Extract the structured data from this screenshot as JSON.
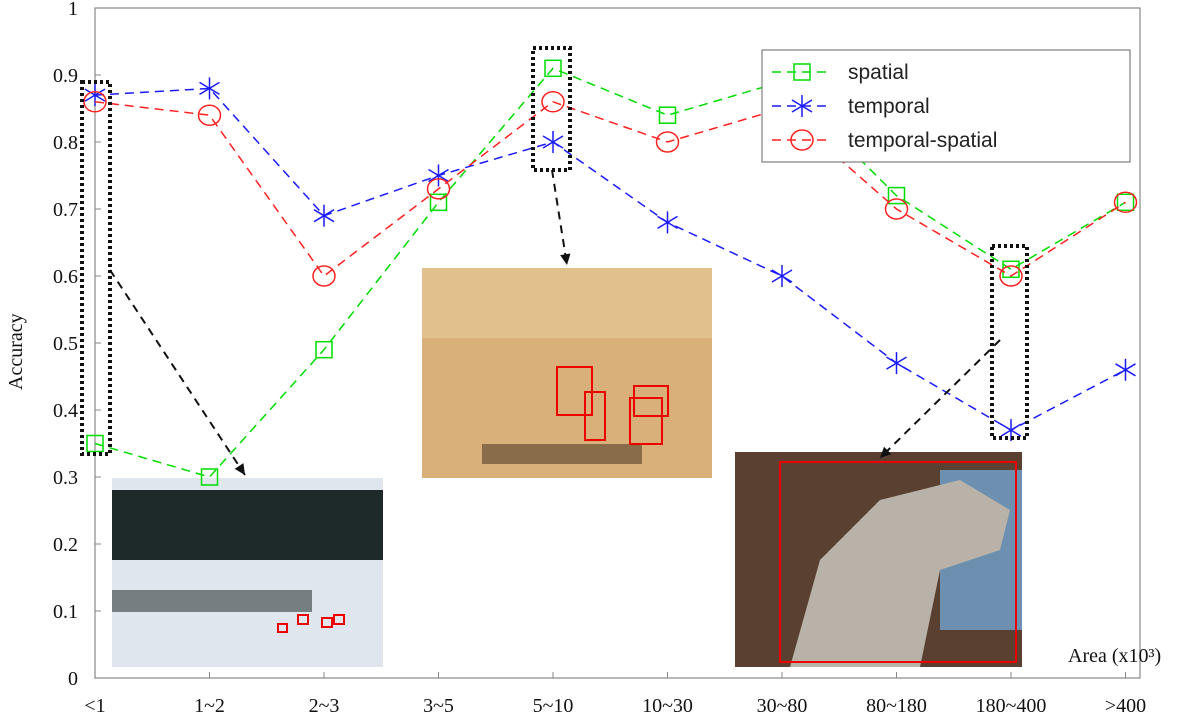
{
  "chart_data": {
    "type": "line",
    "xlabel": "Area (x10³)",
    "ylabel": "Accuracy",
    "categories": [
      "<1",
      "1~2",
      "2~3",
      "3~5",
      "5~10",
      "10~30",
      "30~80",
      "80~180",
      "180~400",
      ">400"
    ],
    "ylim": [
      0,
      1
    ],
    "yticks": [
      "0",
      "0.1",
      "0.2",
      "0.3",
      "0.4",
      "0.5",
      "0.6",
      "0.7",
      "0.8",
      "0.9",
      "1"
    ],
    "grid": false,
    "legend": "top-right",
    "series": [
      {
        "name": "spatial",
        "color": "#00dd00",
        "marker": "square",
        "values": [
          0.35,
          0.3,
          0.49,
          0.71,
          0.91,
          0.84,
          0.89,
          0.72,
          0.61,
          0.71
        ]
      },
      {
        "name": "temporal",
        "color": "#1a1aff",
        "marker": "asterisk",
        "values": [
          0.87,
          0.88,
          0.69,
          0.75,
          0.8,
          0.68,
          0.6,
          0.47,
          0.37,
          0.46
        ]
      },
      {
        "name": "temporal-spatial",
        "color": "#ff2020",
        "marker": "circle",
        "values": [
          0.86,
          0.84,
          0.6,
          0.73,
          0.86,
          0.8,
          0.85,
          0.7,
          0.6,
          0.71
        ]
      }
    ],
    "annotations": [
      "<1",
      "5~10",
      "180~400"
    ]
  }
}
